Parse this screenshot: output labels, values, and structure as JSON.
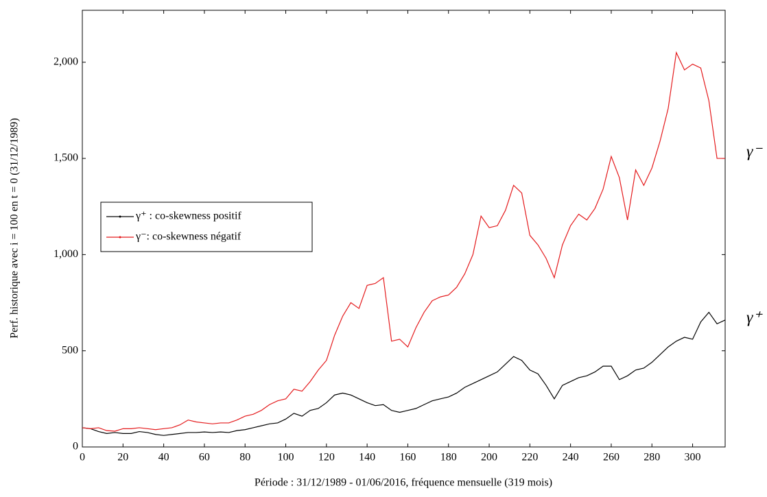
{
  "chart_data": {
    "type": "line",
    "xlabel": "Période : 31/12/1989 - 01/06/2016, fréquence mensuelle (319 mois)",
    "ylabel": "Perf. historique avec i = 100 en t = 0 (31/12/1989)",
    "annotations": [
      "γ⁻",
      "γ⁺"
    ],
    "x": [
      0,
      4,
      8,
      12,
      16,
      20,
      24,
      28,
      32,
      36,
      40,
      44,
      48,
      52,
      56,
      60,
      64,
      68,
      72,
      76,
      80,
      84,
      88,
      92,
      96,
      100,
      104,
      108,
      112,
      116,
      120,
      124,
      128,
      132,
      136,
      140,
      144,
      148,
      152,
      156,
      160,
      164,
      168,
      172,
      176,
      180,
      184,
      188,
      192,
      196,
      200,
      204,
      208,
      212,
      216,
      220,
      224,
      228,
      232,
      236,
      240,
      244,
      248,
      252,
      256,
      260,
      264,
      268,
      272,
      276,
      280,
      284,
      288,
      292,
      296,
      300,
      304,
      308,
      312,
      316
    ],
    "series": [
      {
        "name": "γ⁺ : co-skewness positif",
        "color": "#000000",
        "values": [
          100,
          95,
          80,
          70,
          75,
          70,
          70,
          80,
          75,
          65,
          60,
          65,
          70,
          75,
          75,
          78,
          75,
          78,
          75,
          85,
          90,
          100,
          110,
          120,
          125,
          145,
          175,
          160,
          190,
          200,
          230,
          270,
          280,
          270,
          250,
          230,
          215,
          220,
          190,
          180,
          190,
          200,
          220,
          240,
          250,
          260,
          280,
          310,
          330,
          350,
          370,
          390,
          430,
          470,
          450,
          400,
          380,
          320,
          250,
          320,
          340,
          360,
          370,
          390,
          420,
          420,
          350,
          370,
          400,
          410,
          440,
          480,
          520,
          550,
          570,
          560,
          650,
          700,
          640,
          660
        ]
      },
      {
        "name": "γ⁻: co-skewness négatif",
        "color": "#e41a1c",
        "values": [
          100,
          95,
          100,
          85,
          82,
          95,
          95,
          100,
          95,
          90,
          95,
          100,
          115,
          140,
          130,
          125,
          120,
          125,
          125,
          140,
          160,
          170,
          190,
          220,
          240,
          250,
          300,
          290,
          340,
          400,
          450,
          580,
          680,
          750,
          720,
          840,
          850,
          880,
          550,
          560,
          520,
          620,
          700,
          760,
          780,
          790,
          830,
          900,
          1000,
          1200,
          1140,
          1150,
          1230,
          1360,
          1320,
          1100,
          1050,
          980,
          880,
          1050,
          1150,
          1210,
          1180,
          1240,
          1340,
          1510,
          1400,
          1180,
          1440,
          1360,
          1450,
          1590,
          1760,
          2050,
          1960,
          1990,
          1970,
          1800,
          1500,
          1500
        ]
      }
    ],
    "xlim": [
      0,
      316
    ],
    "ylim": [
      0,
      2270
    ],
    "xticks": [
      0,
      20,
      40,
      60,
      80,
      100,
      120,
      140,
      160,
      180,
      200,
      220,
      240,
      260,
      280,
      300
    ],
    "yticks": [
      0,
      500,
      {
        "value": 1000,
        "label": "1,000"
      },
      {
        "value": 1500,
        "label": "1,500"
      },
      {
        "value": 2000,
        "label": "2,000"
      }
    ]
  }
}
